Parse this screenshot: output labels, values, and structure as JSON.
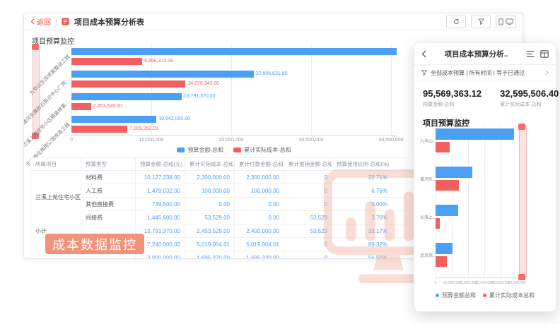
{
  "colors": {
    "accent_red": "#F0503C",
    "bar_blue": "#4BA0F5",
    "bar_red": "#F45E5E",
    "table_value_blue": "#4D9FFF",
    "overlay_badge_bg": "#F0937A",
    "watermark": "#F2A78F",
    "datazoom_fill": "#FBE3E3",
    "datazoom_handle": "#F56C6C"
  },
  "icons": {
    "back": "chevron-left",
    "window_doc": "red-document",
    "toolbar": [
      "refresh",
      "funnel-filter",
      "device-preview (phone+monitor)"
    ],
    "settings": "gear",
    "mobile_header": [
      "chevron-left",
      "list",
      "table-grid"
    ],
    "mobile_filter": "funnel",
    "chevron_right": "chevron-right"
  },
  "main_window": {
    "back_label": "返回",
    "title": "项目成本预算分析表",
    "widget_title": "项目预算监控",
    "legend": [
      {
        "label": "预算金额-总和",
        "color": "#4BA0F5"
      },
      {
        "label": "累计实际成本-总和",
        "color": "#F45E5E"
      }
    ]
  },
  "chart_data": [
    {
      "type": "bar",
      "orientation": "horizontal",
      "title": "项目预算监控",
      "categories": [
        "九华山生态修复整治工程",
        "黄河东路砂石拆迁中心厂房…",
        "兰溪上苑住宅小区精装修第…",
        "北京商住两用公馆改造工程"
      ],
      "series": [
        {
          "name": "预算金额-总和",
          "color": "#4BA0F5",
          "values": [
            48329361.32,
            22806631.8,
            13791370.0,
            10642000.0
          ],
          "labels": [
            "",
            "22,806,631.80",
            "13,791,370.00",
            "10,642,000.00"
          ]
        },
        {
          "name": "累计实际成本-总和",
          "color": "#F45E5E",
          "values": [
            8856372.38,
            14276343.0,
            2453529.0,
            7009262.01
          ],
          "labels": [
            "8,856,372.38",
            "14,276,343.00",
            "2,453,529.00",
            "7,009,262.01"
          ]
        }
      ],
      "x_ticks": [
        "0",
        "10,000,000",
        "20,000,000",
        "30,000,000",
        "40,000,000"
      ],
      "xlim": [
        0,
        40000000
      ],
      "grid": true,
      "legend_position": "bottom"
    },
    {
      "type": "bar",
      "orientation": "horizontal",
      "title": "项目预算监控",
      "categories": [
        "九华山..",
        "黄河东..",
        "兰溪上..",
        "北京商.."
      ],
      "series": [
        {
          "name": "预算金额总和",
          "color": "#4BA0F5",
          "values": [
            48329361.32,
            22806631.8,
            13791370.0,
            10642000.0
          ]
        },
        {
          "name": "累计实际成本总和",
          "color": "#F45E5E",
          "values": [
            8856372.38,
            14276343.0,
            2453529.0,
            7009262.01
          ]
        }
      ],
      "x_ticks": [
        "0",
        "10,000,000",
        "20,000,000",
        "30,000,000",
        "40,000,000",
        "50,000,000"
      ],
      "xlim": [
        0,
        50000000
      ],
      "grid": true,
      "legend_position": "bottom"
    }
  ],
  "table": {
    "headers": [
      "所属项目",
      "预算类型",
      "预算金额-总和(元)",
      "累计实际成本-总和(元)",
      "累计付款金额-总和(元)",
      "累计报销金额-总和(元)",
      "预算使用比例-总和(%)"
    ],
    "groups": [
      {
        "project": "兰溪上苑住宅小区精装修第...",
        "rows": [
          [
            "材料费",
            "10,127,238.00",
            "2,300,000.00",
            "2,300,000.00",
            "0",
            "22.71%"
          ],
          [
            "人工费",
            "1,479,032.00",
            "100,000.00",
            "100,000.00",
            "0",
            "6.76%"
          ],
          [
            "其他直接费",
            "739,500.00",
            "0.00",
            "0.00",
            "0",
            "0.00%"
          ],
          [
            "间接费",
            "1,445,600.00",
            "53,529.00",
            "0.00",
            "53,529",
            "3.70%"
          ]
        ]
      },
      {
        "project": "小计",
        "rows": [
          [
            "",
            "13,791,370.00",
            "2,453,529.00",
            "2,400,000.00",
            "53,529",
            "33.17%"
          ]
        ]
      },
      {
        "project": "",
        "rows": [
          [
            "材料费",
            "7,240,000.00",
            "5,019,004.01",
            "5,019,004.01",
            "0",
            "69.32%"
          ],
          [
            "",
            "3,000,000.00",
            "1,695,320.00",
            "1,695,320.00",
            "0",
            "56.51%"
          ]
        ]
      }
    ]
  },
  "overlay_badge": "成本数据监控",
  "mobile_panel": {
    "title": "项目成本预算分析..",
    "filter_text": "全部成本预算 | 所有时间 | 等于已通过",
    "stats": [
      {
        "value": "95,569,363.12",
        "label": "预算金额-总和"
      },
      {
        "value": "32,595,506.40",
        "label": "累计实际成本-总和"
      }
    ],
    "section_title": "项目预算监控",
    "legend": [
      {
        "label": "预算金额总和",
        "color": "#4BA0F5"
      },
      {
        "label": "累计实际成本总和",
        "color": "#F45E5E"
      }
    ]
  }
}
